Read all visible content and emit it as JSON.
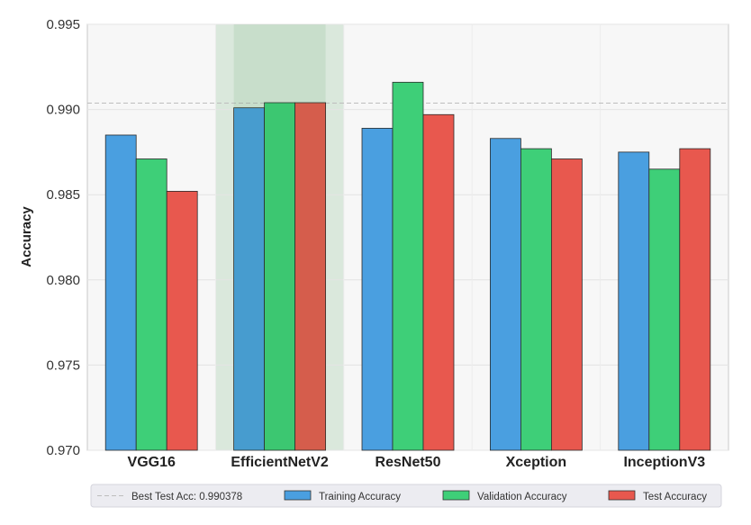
{
  "chart_data": {
    "type": "bar",
    "title": "",
    "xlabel": "",
    "ylabel": "Accuracy",
    "ylim": [
      0.97,
      0.995
    ],
    "yticks": [
      "0.970",
      "0.975",
      "0.980",
      "0.985",
      "0.990",
      "0.995"
    ],
    "grid": true,
    "legend_position": "bottom",
    "categories": [
      "VGG16",
      "EfficientNetV2",
      "ResNet50",
      "Xception",
      "InceptionV3"
    ],
    "highlighted_category": "EfficientNetV2",
    "series": [
      {
        "name": "Training Accuracy",
        "color": "#4a9fe0",
        "values": [
          0.9885,
          0.9901,
          0.9889,
          0.9883,
          0.9875
        ]
      },
      {
        "name": "Validation Accuracy",
        "color": "#3ecf78",
        "values": [
          0.9871,
          0.9904,
          0.9916,
          0.9877,
          0.9865
        ]
      },
      {
        "name": "Test Accuracy",
        "color": "#e8584e",
        "values": [
          0.9852,
          0.9904,
          0.9897,
          0.9871,
          0.9877
        ]
      }
    ],
    "reference_line": {
      "label": "Best Test Acc: 0.990378",
      "value": 0.990378
    }
  }
}
